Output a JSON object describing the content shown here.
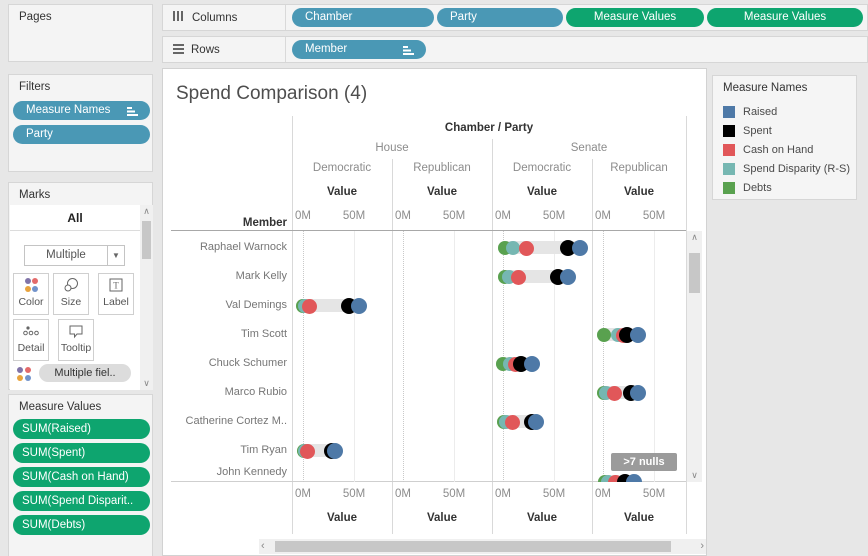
{
  "colors": {
    "pill_blue": "#4A98B5",
    "pill_green": "#0EA56F",
    "raised": "#4e79a7",
    "spent": "#000000",
    "cash_on_hand": "#e15759",
    "spend_disparity": "#76b7b2",
    "debts": "#59a14f",
    "band": "#e5e5e5",
    "nulls_badge_bg": "#9b9b9b"
  },
  "pages": {
    "title": "Pages"
  },
  "filters": {
    "title": "Filters",
    "pills": [
      {
        "label": "Measure Names",
        "sorted": true
      },
      {
        "label": "Party",
        "sorted": false
      }
    ]
  },
  "marks": {
    "title": "Marks",
    "tab": "All",
    "type_dropdown": "Multiple",
    "buttons": [
      {
        "label": "Color",
        "icon": "color-icon"
      },
      {
        "label": "Size",
        "icon": "size-icon"
      },
      {
        "label": "Label",
        "icon": "label-icon"
      },
      {
        "label": "Detail",
        "icon": "detail-icon"
      },
      {
        "label": "Tooltip",
        "icon": "tooltip-icon"
      }
    ],
    "overflow_pill": "Multiple fiel.."
  },
  "measure_values_card": {
    "title": "Measure Values",
    "pills": [
      "SUM(Raised)",
      "SUM(Spent)",
      "SUM(Cash on Hand)",
      "SUM(Spend Disparit..",
      "SUM(Debts)"
    ]
  },
  "shelves": {
    "columns": {
      "label": "Columns",
      "pills": [
        {
          "label": "Chamber",
          "kind": "blue",
          "sorted": false
        },
        {
          "label": "Party",
          "kind": "blue",
          "sorted": false
        },
        {
          "label": "Measure Values",
          "kind": "green",
          "sorted": false
        },
        {
          "label": "Measure Values",
          "kind": "green",
          "sorted": false
        }
      ]
    },
    "rows": {
      "label": "Rows",
      "pills": [
        {
          "label": "Member",
          "kind": "blue",
          "sorted": true
        }
      ]
    }
  },
  "legend": {
    "title": "Measure Names",
    "items": [
      {
        "label": "Raised",
        "color": "#4e79a7"
      },
      {
        "label": "Spent",
        "color": "#000000"
      },
      {
        "label": "Cash on Hand",
        "color": "#e15759"
      },
      {
        "label": "Spend Disparity (R-S)",
        "color": "#76b7b2"
      },
      {
        "label": "Debts",
        "color": "#59a14f"
      }
    ]
  },
  "worksheet": {
    "title": "Spend Comparison (4)",
    "nulls_badge": ">7 nulls"
  },
  "chart_data": {
    "type": "scatter",
    "subtype": "dot-plot / barbell",
    "title": "Spend Comparison (4)",
    "col_header": "Chamber / Party",
    "row_header": "Member",
    "chambers": [
      "House",
      "Senate"
    ],
    "parties": [
      "Democratic",
      "Republican"
    ],
    "panels": [
      "House / Democratic",
      "House / Republican",
      "Senate / Democratic",
      "Senate / Republican"
    ],
    "axis": {
      "label": "Value",
      "ticks": [
        "0M",
        "50M"
      ],
      "tick_values": [
        0,
        50
      ],
      "unit": "millions USD",
      "range": [
        0,
        95
      ],
      "gridlines": "dotted at 0M, light at 50M"
    },
    "series_order": [
      "Debts",
      "Spend Disparity (R-S)",
      "Cash on Hand",
      "Spent",
      "Raised"
    ],
    "rows": [
      {
        "member": "Raphael Warnock",
        "panel": "Senate / Democratic",
        "values": {
          "Debts": 2,
          "Spend Disparity (R-S)": 10,
          "Cash on Hand": 23,
          "Spent": 64,
          "Raised": 75
        }
      },
      {
        "member": "Mark Kelly",
        "panel": "Senate / Democratic",
        "values": {
          "Debts": 2,
          "Spend Disparity (R-S)": 6,
          "Cash on Hand": 15,
          "Spent": 54,
          "Raised": 64
        }
      },
      {
        "member": "Val Demings",
        "panel": "House / Democratic",
        "values": {
          "Debts": 0,
          "Spend Disparity (R-S)": 2,
          "Cash on Hand": 6,
          "Spent": 45,
          "Raised": 55
        }
      },
      {
        "member": "Tim Scott",
        "panel": "Senate / Republican",
        "values": {
          "Debts": 1,
          "Spend Disparity (R-S)": 15,
          "Cash on Hand": 20,
          "Spent": 24,
          "Raised": 34
        }
      },
      {
        "member": "Chuck Schumer",
        "panel": "Senate / Democratic",
        "values": {
          "Debts": 0,
          "Spend Disparity (R-S)": 7,
          "Cash on Hand": 12,
          "Spent": 18,
          "Raised": 28
        }
      },
      {
        "member": "Marco Rubio",
        "panel": "Senate / Republican",
        "values": {
          "Debts": 1,
          "Spend Disparity (R-S)": 3,
          "Cash on Hand": 11,
          "Spent": 27,
          "Raised": 34
        }
      },
      {
        "member": "Catherine Cortez M..",
        "panel": "Senate / Democratic",
        "values": {
          "Debts": 1,
          "Spend Disparity (R-S)": 3,
          "Cash on Hand": 9,
          "Spent": 28,
          "Raised": 32
        }
      },
      {
        "member": "Tim Ryan",
        "panel": "House / Democratic",
        "values": {
          "Debts": 1,
          "Spend Disparity (R-S)": 2,
          "Cash on Hand": 4,
          "Spent": 28,
          "Raised": 31
        }
      },
      {
        "member": "John Kennedy",
        "panel": "Senate / Republican",
        "clipped": true,
        "values": {
          "Debts": 2,
          "Spend Disparity (R-S)": 5,
          "Cash on Hand": 12,
          "Spent": 22,
          "Raised": 30
        }
      }
    ],
    "annotations": [
      {
        "text": ">7 nulls",
        "panel": "Senate / Republican",
        "position": "bottom-right"
      }
    ],
    "legend_position": "right"
  }
}
